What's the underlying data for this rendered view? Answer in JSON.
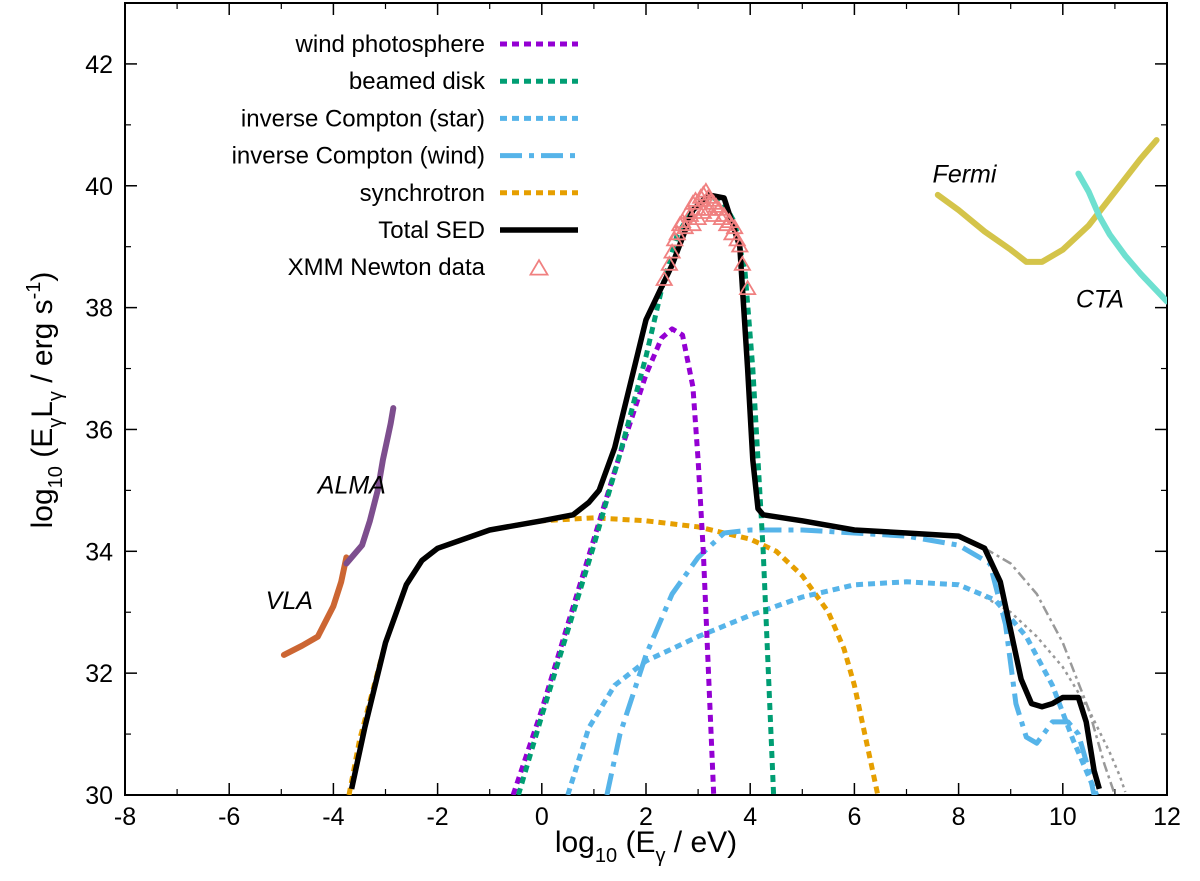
{
  "chart_data": {
    "type": "line",
    "xlabel_parts": [
      "log",
      "10",
      " (E",
      "γ",
      " / eV)"
    ],
    "ylabel_parts": [
      "log",
      "10",
      " (E",
      "γ",
      "L",
      "γ",
      " / erg s",
      "-1",
      ")"
    ],
    "xlim": [
      -8,
      12
    ],
    "ylim": [
      30,
      43
    ],
    "x_ticks": [
      -8,
      -6,
      -4,
      -2,
      0,
      2,
      4,
      6,
      8,
      10,
      12
    ],
    "x_tick_labels": [
      "-8",
      "-6",
      "-4",
      "-2",
      "0",
      "2",
      "4",
      "6",
      "8",
      "10",
      "12"
    ],
    "y_ticks": [
      30,
      32,
      34,
      36,
      38,
      40,
      42
    ],
    "y_tick_labels": [
      "30",
      "32",
      "34",
      "36",
      "38",
      "40",
      "42"
    ],
    "legend": {
      "placement": "top-left",
      "entries": [
        {
          "label": "wind photosphere",
          "series": "wind_photosphere"
        },
        {
          "label": "beamed disk",
          "series": "beamed_disk"
        },
        {
          "label": "inverse Compton (star)",
          "series": "ic_star"
        },
        {
          "label": "inverse Compton (wind)",
          "series": "ic_wind"
        },
        {
          "label": "synchrotron",
          "series": "synchrotron"
        },
        {
          "label": "Total SED",
          "series": "total"
        },
        {
          "label": "XMM Newton data",
          "series": "xmm"
        }
      ]
    },
    "series": [
      {
        "id": "wind_photosphere",
        "name": "wind photosphere",
        "color": "#9400D3",
        "style": "dotted",
        "x": [
          -0.55,
          0,
          0.5,
          1,
          1.5,
          2,
          2.3,
          2.5,
          2.7,
          2.9,
          3.0,
          3.1,
          3.2,
          3.3
        ],
        "y": [
          30.0,
          31.4,
          32.8,
          34.2,
          35.6,
          36.9,
          37.5,
          37.65,
          37.55,
          36.7,
          35.5,
          34.0,
          32.0,
          30.0
        ]
      },
      {
        "id": "beamed_disk",
        "name": "beamed disk",
        "color": "#009E73",
        "style": "dotted",
        "x": [
          -0.45,
          0,
          0.5,
          1,
          1.5,
          2,
          2.3,
          2.6,
          2.9,
          3.1,
          3.3,
          3.5,
          3.7,
          3.9,
          4.05,
          4.15,
          4.25,
          4.35,
          4.45
        ],
        "y": [
          30.0,
          31.3,
          32.7,
          34.1,
          35.6,
          37.2,
          38.3,
          39.2,
          39.6,
          39.75,
          39.8,
          39.7,
          39.4,
          38.6,
          37.0,
          35.5,
          34.0,
          32.0,
          30.0
        ]
      },
      {
        "id": "ic_star",
        "name": "inverse Compton (star)",
        "color": "#56B4E9",
        "style": "dotted",
        "x": [
          0.5,
          0.9,
          1.4,
          2.0,
          3.0,
          4.0,
          5.0,
          6.0,
          7.0,
          8.0,
          8.7,
          9.3,
          9.8,
          10.2,
          10.5,
          10.65
        ],
        "y": [
          30.0,
          31.1,
          31.8,
          32.2,
          32.6,
          32.95,
          33.25,
          33.45,
          33.5,
          33.45,
          33.2,
          32.6,
          31.8,
          30.9,
          30.3,
          30.0
        ]
      },
      {
        "id": "ic_wind",
        "name": "inverse Compton (wind)",
        "color": "#56B4E9",
        "style": "dashdot",
        "x": [
          1.25,
          1.5,
          2.0,
          2.5,
          3.0,
          3.5,
          4.0,
          5.0,
          6.0,
          7.0,
          8.0,
          8.6,
          8.9,
          9.1,
          9.3,
          9.5,
          9.8,
          10.1,
          10.3,
          10.5,
          10.6
        ],
        "y": [
          30.0,
          31.0,
          32.3,
          33.3,
          33.9,
          34.3,
          34.35,
          34.35,
          34.3,
          34.25,
          34.1,
          33.8,
          32.8,
          31.5,
          30.95,
          30.85,
          31.2,
          31.2,
          31.0,
          30.4,
          30.0
        ]
      },
      {
        "id": "synchrotron",
        "name": "synchrotron",
        "color": "#E69F00",
        "style": "dotted",
        "x": [
          -3.7,
          -3.5,
          -3.0,
          -2.6,
          -2.3,
          -2.0,
          -1.0,
          0.0,
          1.0,
          2.0,
          3.0,
          4.0,
          4.5,
          5.0,
          5.5,
          5.8,
          6.0,
          6.2,
          6.35,
          6.45
        ],
        "y": [
          30.0,
          30.9,
          32.5,
          33.45,
          33.85,
          34.05,
          34.35,
          34.5,
          34.55,
          34.5,
          34.4,
          34.2,
          34.0,
          33.6,
          33.0,
          32.4,
          31.8,
          31.0,
          30.4,
          30.0
        ]
      },
      {
        "id": "total",
        "name": "Total SED",
        "color": "#000000",
        "style": "solid",
        "x": [
          -3.65,
          -3.4,
          -3.0,
          -2.6,
          -2.3,
          -2.0,
          -1.0,
          0.0,
          0.6,
          0.9,
          1.1,
          1.4,
          2.0,
          2.5,
          2.9,
          3.2,
          3.5,
          3.8,
          3.95,
          4.05,
          4.15,
          4.25,
          5.0,
          6.0,
          7.0,
          8.0,
          8.5,
          8.8,
          9.0,
          9.2,
          9.4,
          9.6,
          9.8,
          10.0,
          10.3,
          10.45,
          10.6,
          10.7
        ],
        "y": [
          30.1,
          31.1,
          32.5,
          33.45,
          33.85,
          34.05,
          34.35,
          34.5,
          34.6,
          34.8,
          35.0,
          35.7,
          37.8,
          38.7,
          39.6,
          39.85,
          39.8,
          39.0,
          37.0,
          35.5,
          34.7,
          34.6,
          34.5,
          34.35,
          34.3,
          34.25,
          34.05,
          33.5,
          32.7,
          31.9,
          31.5,
          31.45,
          31.5,
          31.6,
          31.6,
          31.2,
          30.4,
          30.1
        ]
      },
      {
        "id": "gray_dashdot",
        "name": "",
        "color": "#999999",
        "style": "dashdot-thin",
        "x": [
          8.5,
          9.0,
          9.5,
          10.0,
          10.5,
          10.8,
          11.0
        ],
        "y": [
          34.05,
          33.8,
          33.3,
          32.5,
          31.4,
          30.5,
          30.0
        ]
      },
      {
        "id": "gray_dotted",
        "name": "",
        "color": "#999999",
        "style": "dotted-thin",
        "x": [
          8.5,
          9.0,
          9.5,
          10.0,
          10.5,
          10.9,
          11.1,
          11.2
        ],
        "y": [
          33.25,
          33.0,
          32.6,
          32.1,
          31.4,
          30.7,
          30.3,
          30.05
        ]
      },
      {
        "id": "vla",
        "name": "VLA",
        "color": "#CC6633",
        "style": "solid-thick",
        "x": [
          -4.95,
          -4.6,
          -4.3,
          -4.0,
          -3.85,
          -3.75
        ],
        "y": [
          32.3,
          32.45,
          32.6,
          33.1,
          33.5,
          33.9
        ]
      },
      {
        "id": "alma",
        "name": "ALMA",
        "color": "#7D4E8E",
        "style": "solid-thick",
        "x": [
          -3.75,
          -3.45,
          -3.3,
          -3.15,
          -3.05,
          -2.95,
          -2.9,
          -2.85
        ],
        "y": [
          33.8,
          34.1,
          34.5,
          35.0,
          35.5,
          35.9,
          36.1,
          36.35
        ]
      },
      {
        "id": "fermi",
        "name": "Fermi",
        "color": "#D4C44A",
        "style": "solid-thick",
        "x": [
          7.6,
          8.0,
          8.5,
          9.0,
          9.3,
          9.6,
          10.0,
          10.5,
          11.0,
          11.5,
          11.8
        ],
        "y": [
          39.85,
          39.6,
          39.25,
          38.95,
          38.75,
          38.75,
          38.95,
          39.35,
          39.9,
          40.45,
          40.75
        ]
      },
      {
        "id": "cta",
        "name": "CTA",
        "color": "#6EE0D0",
        "style": "solid-thick",
        "x": [
          10.3,
          10.5,
          10.7,
          10.9,
          11.2,
          11.5,
          12.0
        ],
        "y": [
          40.2,
          39.9,
          39.5,
          39.2,
          38.85,
          38.55,
          38.1
        ]
      }
    ],
    "xmm_data": {
      "name": "XMM Newton data",
      "color": "#F08080",
      "x": [
        2.35,
        2.45,
        2.5,
        2.55,
        2.6,
        2.65,
        2.7,
        2.75,
        2.8,
        2.85,
        2.9,
        2.9,
        2.95,
        3.0,
        3.0,
        3.05,
        3.1,
        3.1,
        3.15,
        3.2,
        3.2,
        3.25,
        3.3,
        3.3,
        3.35,
        3.4,
        3.45,
        3.5,
        3.55,
        3.6,
        3.65,
        3.7,
        3.75,
        3.8,
        3.85,
        3.95
      ],
      "y": [
        38.45,
        38.7,
        38.9,
        39.1,
        39.2,
        39.35,
        39.4,
        39.3,
        39.55,
        39.5,
        39.7,
        39.35,
        39.75,
        39.6,
        39.45,
        39.8,
        39.85,
        39.55,
        39.9,
        39.8,
        39.6,
        39.75,
        39.7,
        39.5,
        39.65,
        39.6,
        39.45,
        39.5,
        39.35,
        39.4,
        39.2,
        39.3,
        39.1,
        39.0,
        38.7,
        38.3
      ]
    },
    "annotations": [
      {
        "text": "ALMA",
        "x": -4.3,
        "y": 34.95
      },
      {
        "text": "VLA",
        "x": -5.3,
        "y": 33.05
      },
      {
        "text": "Fermi",
        "x": 7.5,
        "y": 40.05
      },
      {
        "text": "CTA",
        "x": 10.25,
        "y": 38.0
      }
    ]
  }
}
